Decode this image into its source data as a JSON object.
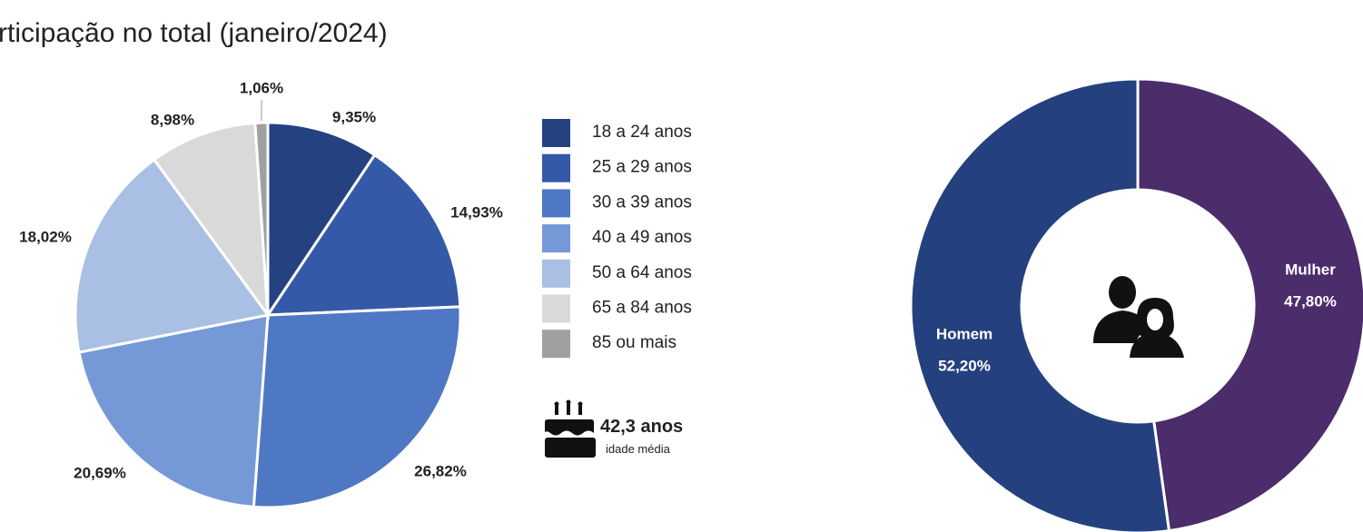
{
  "chart_data": [
    {
      "type": "pie",
      "title": "rticipação no total (janeiro/2024)",
      "categories": [
        "18 a 24 anos",
        "25 a 29 anos",
        "30 a 39 anos",
        "40 a 49 anos",
        "50 a 64 anos",
        "65 a 84 anos",
        "85 ou mais"
      ],
      "values": [
        9.35,
        14.93,
        26.82,
        20.69,
        18.02,
        8.98,
        1.06
      ],
      "value_labels": [
        "9,35%",
        "14,93%",
        "26,82%",
        "20,69%",
        "18,02%",
        "8,98%",
        "1,06%"
      ],
      "colors": [
        "#23427f",
        "#3459a6",
        "#4f78c4",
        "#7599d6",
        "#a9bfe3",
        "#d9d9d9",
        "#a0a0a0"
      ],
      "legend": "right",
      "annotations": [
        "42,3 anos",
        "idade média"
      ]
    },
    {
      "type": "donut",
      "categories": [
        "Mulher",
        "Homem"
      ],
      "values": [
        47.8,
        52.2
      ],
      "value_labels": [
        "47,80%",
        "52,20%"
      ],
      "colors": [
        "#4b2d6b",
        "#25407f"
      ]
    }
  ]
}
